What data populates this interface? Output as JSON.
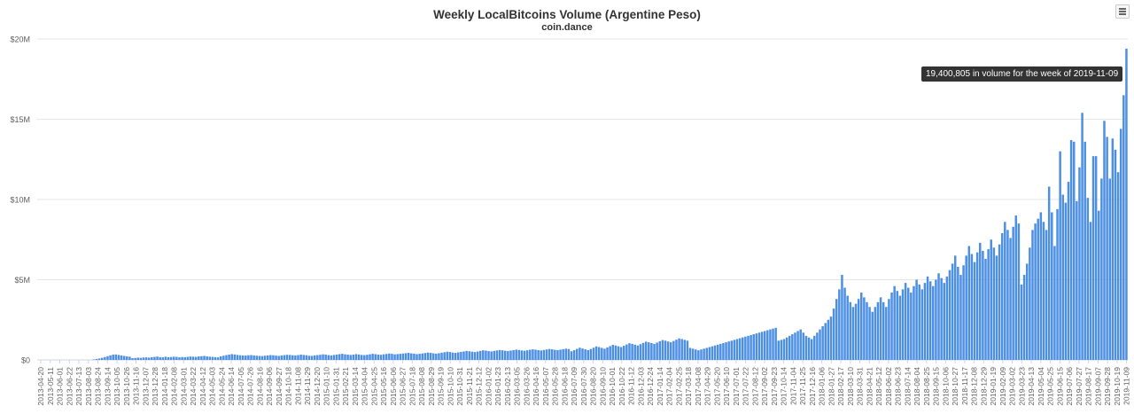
{
  "chart_data": {
    "type": "bar",
    "title": "Weekly LocalBitcoins Volume (Argentine Peso)",
    "subtitle": "coin.dance",
    "ylim": [
      0,
      20000000
    ],
    "y_ticks": [
      "$0",
      "$5M",
      "$10M",
      "$15M",
      "$20M"
    ],
    "y_tick_values": [
      0,
      5000000,
      10000000,
      15000000,
      20000000
    ],
    "grid": true,
    "color": "#4c8fe3",
    "tooltip": "19,400,805 in volume for the week of 2019-11-09",
    "x_labels": [
      "2013-04-20",
      "2013-05-11",
      "2013-06-01",
      "2013-06-22",
      "2013-07-13",
      "2013-08-03",
      "2013-08-24",
      "2013-09-14",
      "2013-10-05",
      "2013-10-26",
      "2013-11-16",
      "2013-12-07",
      "2013-12-28",
      "2014-01-18",
      "2014-02-08",
      "2014-03-01",
      "2014-03-22",
      "2014-04-12",
      "2014-05-03",
      "2014-05-24",
      "2014-06-14",
      "2014-07-05",
      "2014-07-26",
      "2014-08-16",
      "2014-09-06",
      "2014-09-27",
      "2014-10-18",
      "2014-11-08",
      "2014-11-29",
      "2014-12-20",
      "2015-01-10",
      "2015-01-31",
      "2015-02-21",
      "2015-03-14",
      "2015-04-04",
      "2015-04-25",
      "2015-05-16",
      "2015-06-06",
      "2015-06-27",
      "2015-07-18",
      "2015-08-08",
      "2015-08-29",
      "2015-09-19",
      "2015-10-10",
      "2015-10-31",
      "2015-11-21",
      "2015-12-12",
      "2016-01-02",
      "2016-01-23",
      "2016-02-13",
      "2016-03-05",
      "2016-03-26",
      "2016-04-16",
      "2016-05-07",
      "2016-05-28",
      "2016-06-18",
      "2016-07-09",
      "2016-07-30",
      "2016-08-20",
      "2016-09-10",
      "2016-10-01",
      "2016-10-22",
      "2016-11-12",
      "2016-12-03",
      "2016-12-24",
      "2017-01-14",
      "2017-02-04",
      "2017-02-25",
      "2017-03-18",
      "2017-04-08",
      "2017-04-29",
      "2017-05-20",
      "2017-06-10",
      "2017-07-01",
      "2017-07-22",
      "2017-08-12",
      "2017-09-02",
      "2017-09-23",
      "2017-10-14",
      "2017-11-04",
      "2017-11-25",
      "2017-12-16",
      "2018-01-06",
      "2018-01-27",
      "2018-02-17",
      "2018-03-10",
      "2018-03-31",
      "2018-04-21",
      "2018-05-12",
      "2018-06-02",
      "2018-06-23",
      "2018-07-14",
      "2018-08-04",
      "2018-08-25",
      "2018-09-15",
      "2018-10-06",
      "2018-10-27",
      "2018-11-17",
      "2018-12-08",
      "2018-12-29",
      "2019-01-19",
      "2019-02-09",
      "2019-03-02",
      "2019-03-23",
      "2019-04-13",
      "2019-05-04",
      "2019-05-25",
      "2019-06-15",
      "2019-07-06",
      "2019-07-27",
      "2019-08-17",
      "2019-09-07",
      "2019-09-28",
      "2019-10-19",
      "2019-11-09"
    ],
    "values": [
      0,
      0,
      0,
      0,
      0,
      0,
      0,
      0,
      0,
      0,
      0,
      0,
      0,
      0,
      0,
      0,
      0,
      0,
      0,
      0,
      30000,
      60000,
      90000,
      130000,
      180000,
      230000,
      280000,
      330000,
      340000,
      310000,
      280000,
      250000,
      220000,
      200000,
      110000,
      120000,
      140000,
      130000,
      150000,
      160000,
      140000,
      170000,
      190000,
      210000,
      170000,
      160000,
      200000,
      170000,
      180000,
      200000,
      190000,
      160000,
      180000,
      170000,
      190000,
      210000,
      200000,
      190000,
      220000,
      230000,
      250000,
      220000,
      200000,
      190000,
      170000,
      160000,
      220000,
      260000,
      300000,
      330000,
      360000,
      340000,
      310000,
      290000,
      280000,
      270000,
      290000,
      300000,
      280000,
      260000,
      250000,
      240000,
      260000,
      280000,
      300000,
      290000,
      270000,
      250000,
      280000,
      300000,
      320000,
      310000,
      290000,
      280000,
      300000,
      330000,
      310000,
      290000,
      260000,
      250000,
      280000,
      300000,
      320000,
      350000,
      330000,
      300000,
      280000,
      310000,
      330000,
      360000,
      380000,
      350000,
      330000,
      310000,
      330000,
      360000,
      340000,
      310000,
      300000,
      320000,
      350000,
      380000,
      360000,
      330000,
      320000,
      350000,
      370000,
      400000,
      380000,
      350000,
      360000,
      380000,
      400000,
      420000,
      440000,
      410000,
      390000,
      360000,
      380000,
      400000,
      430000,
      460000,
      440000,
      410000,
      390000,
      420000,
      450000,
      480000,
      510000,
      490000,
      460000,
      440000,
      470000,
      500000,
      530000,
      560000,
      540000,
      510000,
      490000,
      520000,
      560000,
      600000,
      580000,
      550000,
      530000,
      560000,
      590000,
      620000,
      600000,
      570000,
      550000,
      580000,
      610000,
      640000,
      620000,
      590000,
      570000,
      600000,
      630000,
      660000,
      640000,
      610000,
      590000,
      620000,
      650000,
      680000,
      660000,
      630000,
      610000,
      640000,
      670000,
      700000,
      680000,
      540000,
      610000,
      690000,
      760000,
      710000,
      660000,
      610000,
      680000,
      760000,
      840000,
      800000,
      750000,
      700000,
      780000,
      860000,
      940000,
      900000,
      850000,
      800000,
      880000,
      960000,
      1040000,
      1000000,
      950000,
      900000,
      980000,
      1060000,
      1140000,
      1100000,
      1050000,
      1000000,
      1080000,
      1160000,
      1240000,
      1200000,
      1150000,
      1100000,
      1180000,
      1260000,
      1340000,
      1300000,
      1250000,
      1200000,
      750000,
      700000,
      650000,
      600000,
      650000,
      700000,
      750000,
      800000,
      850000,
      900000,
      950000,
      1000000,
      1050000,
      1100000,
      1150000,
      1200000,
      1250000,
      1300000,
      1350000,
      1400000,
      1450000,
      1500000,
      1550000,
      1600000,
      1650000,
      1700000,
      1750000,
      1800000,
      1850000,
      1900000,
      1950000,
      2000000,
      1200000,
      1250000,
      1300000,
      1400000,
      1500000,
      1600000,
      1700000,
      1800000,
      1900000,
      1700000,
      1500000,
      1400000,
      1300000,
      1500000,
      1700000,
      1900000,
      2100000,
      2300000,
      2500000,
      2700000,
      3200000,
      3800000,
      4400000,
      5300000,
      4500000,
      4000000,
      3600000,
      3300000,
      3500000,
      3800000,
      4200000,
      3900000,
      3600000,
      3300000,
      3000000,
      3300000,
      3600000,
      3900000,
      3600000,
      3300000,
      3800000,
      4200000,
      4600000,
      4300000,
      4000000,
      4400000,
      4800000,
      4500000,
      4200000,
      4600000,
      5000000,
      4700000,
      4400000,
      4800000,
      5200000,
      4900000,
      4600000,
      5000000,
      5400000,
      5100000,
      4800000,
      5200000,
      5600000,
      6000000,
      6500000,
      5800000,
      5300000,
      5900000,
      6500000,
      7100000,
      6600000,
      6100000,
      6700000,
      7300000,
      6800000,
      6300000,
      6900000,
      7500000,
      7000000,
      6500000,
      7200000,
      7900000,
      8600000,
      8100000,
      7600000,
      8300000,
      9000000,
      8500000,
      4700000,
      5300000,
      6000000,
      7000000,
      8100000,
      8500000,
      8800000,
      9200000,
      8600000,
      8100000,
      10800000,
      9200000,
      7100000,
      9400000,
      13000000,
      10300000,
      9800000,
      11100000,
      13700000,
      13600000,
      9900000,
      12000000,
      15400000,
      13600000,
      10100000,
      8600000,
      12700000,
      12700000,
      9300000,
      11300000,
      14900000,
      13900000,
      11300000,
      13800000,
      13100000,
      11700000,
      14400000,
      16500000,
      19400805
    ]
  }
}
